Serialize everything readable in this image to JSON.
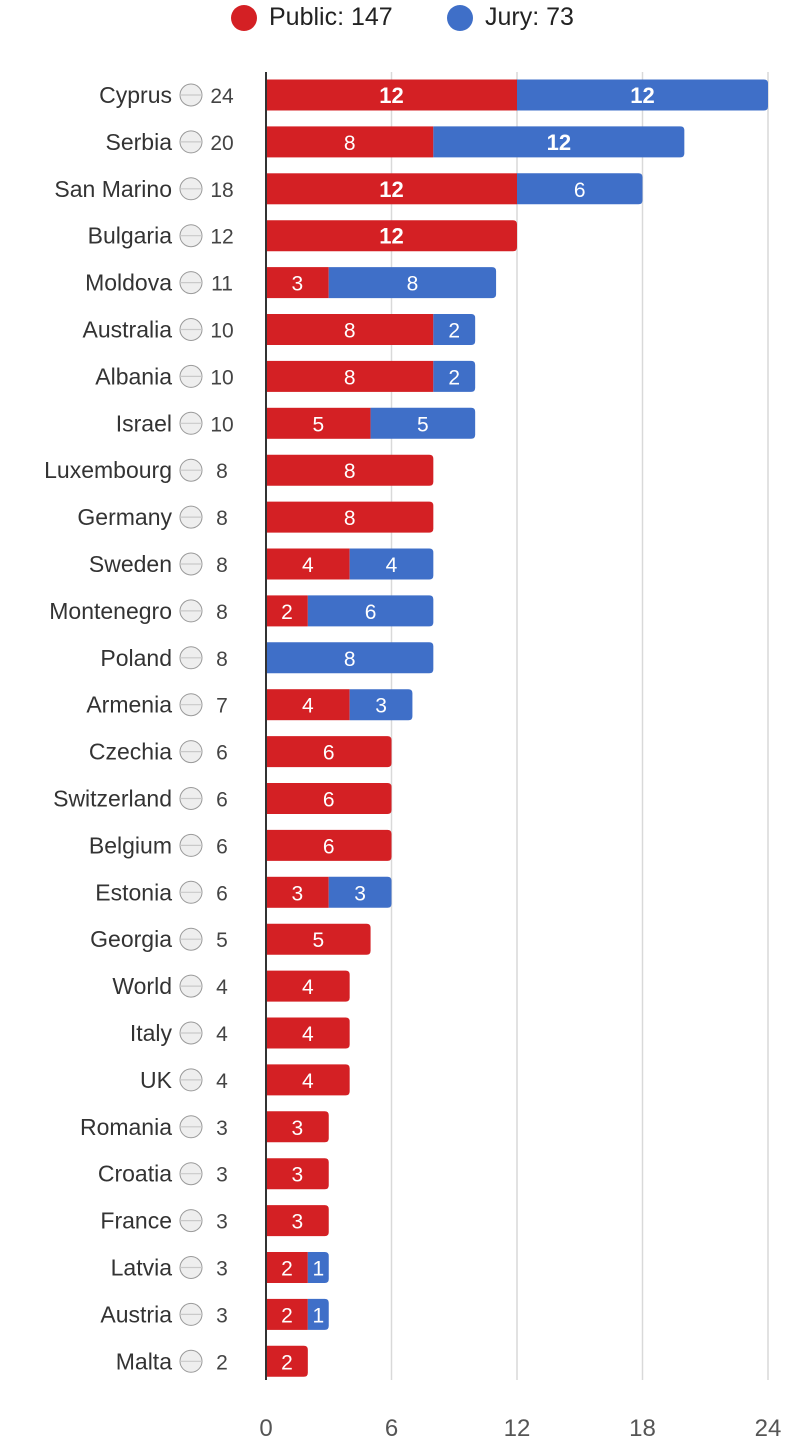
{
  "legend": {
    "public_label": "Public: 147",
    "jury_label": "Jury: 73"
  },
  "colors": {
    "public": "#d42024",
    "jury": "#3f6fc8",
    "axis_line": "#333333",
    "grid": "#d9d9d9"
  },
  "chart_data": {
    "type": "bar",
    "orientation": "horizontal",
    "stacked": true,
    "title": "",
    "xlabel": "",
    "ylabel": "",
    "xlim": [
      0,
      24
    ],
    "x_ticks": [
      0,
      6,
      12,
      18,
      24
    ],
    "grid": true,
    "legend_position": "top",
    "categories": [
      "Cyprus",
      "Serbia",
      "San Marino",
      "Bulgaria",
      "Moldova",
      "Australia",
      "Albania",
      "Israel",
      "Luxembourg",
      "Germany",
      "Sweden",
      "Montenegro",
      "Poland",
      "Armenia",
      "Czechia",
      "Switzerland",
      "Belgium",
      "Estonia",
      "Georgia",
      "World",
      "Italy",
      "UK",
      "Romania",
      "Croatia",
      "France",
      "Latvia",
      "Austria",
      "Malta"
    ],
    "totals": [
      24,
      20,
      18,
      12,
      11,
      10,
      10,
      10,
      8,
      8,
      8,
      8,
      8,
      7,
      6,
      6,
      6,
      6,
      5,
      4,
      4,
      4,
      3,
      3,
      3,
      3,
      3,
      2
    ],
    "series": [
      {
        "name": "Public",
        "values": [
          12,
          8,
          12,
          12,
          3,
          8,
          8,
          5,
          8,
          8,
          4,
          2,
          0,
          4,
          6,
          6,
          6,
          3,
          5,
          4,
          4,
          4,
          3,
          3,
          3,
          2,
          2,
          2
        ]
      },
      {
        "name": "Jury",
        "values": [
          12,
          12,
          6,
          0,
          8,
          2,
          2,
          5,
          0,
          0,
          4,
          6,
          8,
          3,
          0,
          0,
          0,
          3,
          0,
          0,
          0,
          0,
          0,
          0,
          0,
          1,
          1,
          0
        ]
      }
    ],
    "flag_icons": [
      "cyprus-flag-icon",
      "serbia-flag-icon",
      "san-marino-flag-icon",
      "bulgaria-flag-icon",
      "moldova-flag-icon",
      "australia-flag-icon",
      "albania-flag-icon",
      "israel-flag-icon",
      "luxembourg-flag-icon",
      "germany-flag-icon",
      "sweden-flag-icon",
      "montenegro-flag-icon",
      "poland-flag-icon",
      "armenia-flag-icon",
      "czechia-flag-icon",
      "switzerland-flag-icon",
      "belgium-flag-icon",
      "estonia-flag-icon",
      "georgia-flag-icon",
      "world-globe-icon",
      "italy-flag-icon",
      "uk-flag-icon",
      "romania-flag-icon",
      "croatia-flag-icon",
      "france-flag-icon",
      "latvia-flag-icon",
      "austria-flag-icon",
      "malta-flag-icon"
    ]
  }
}
